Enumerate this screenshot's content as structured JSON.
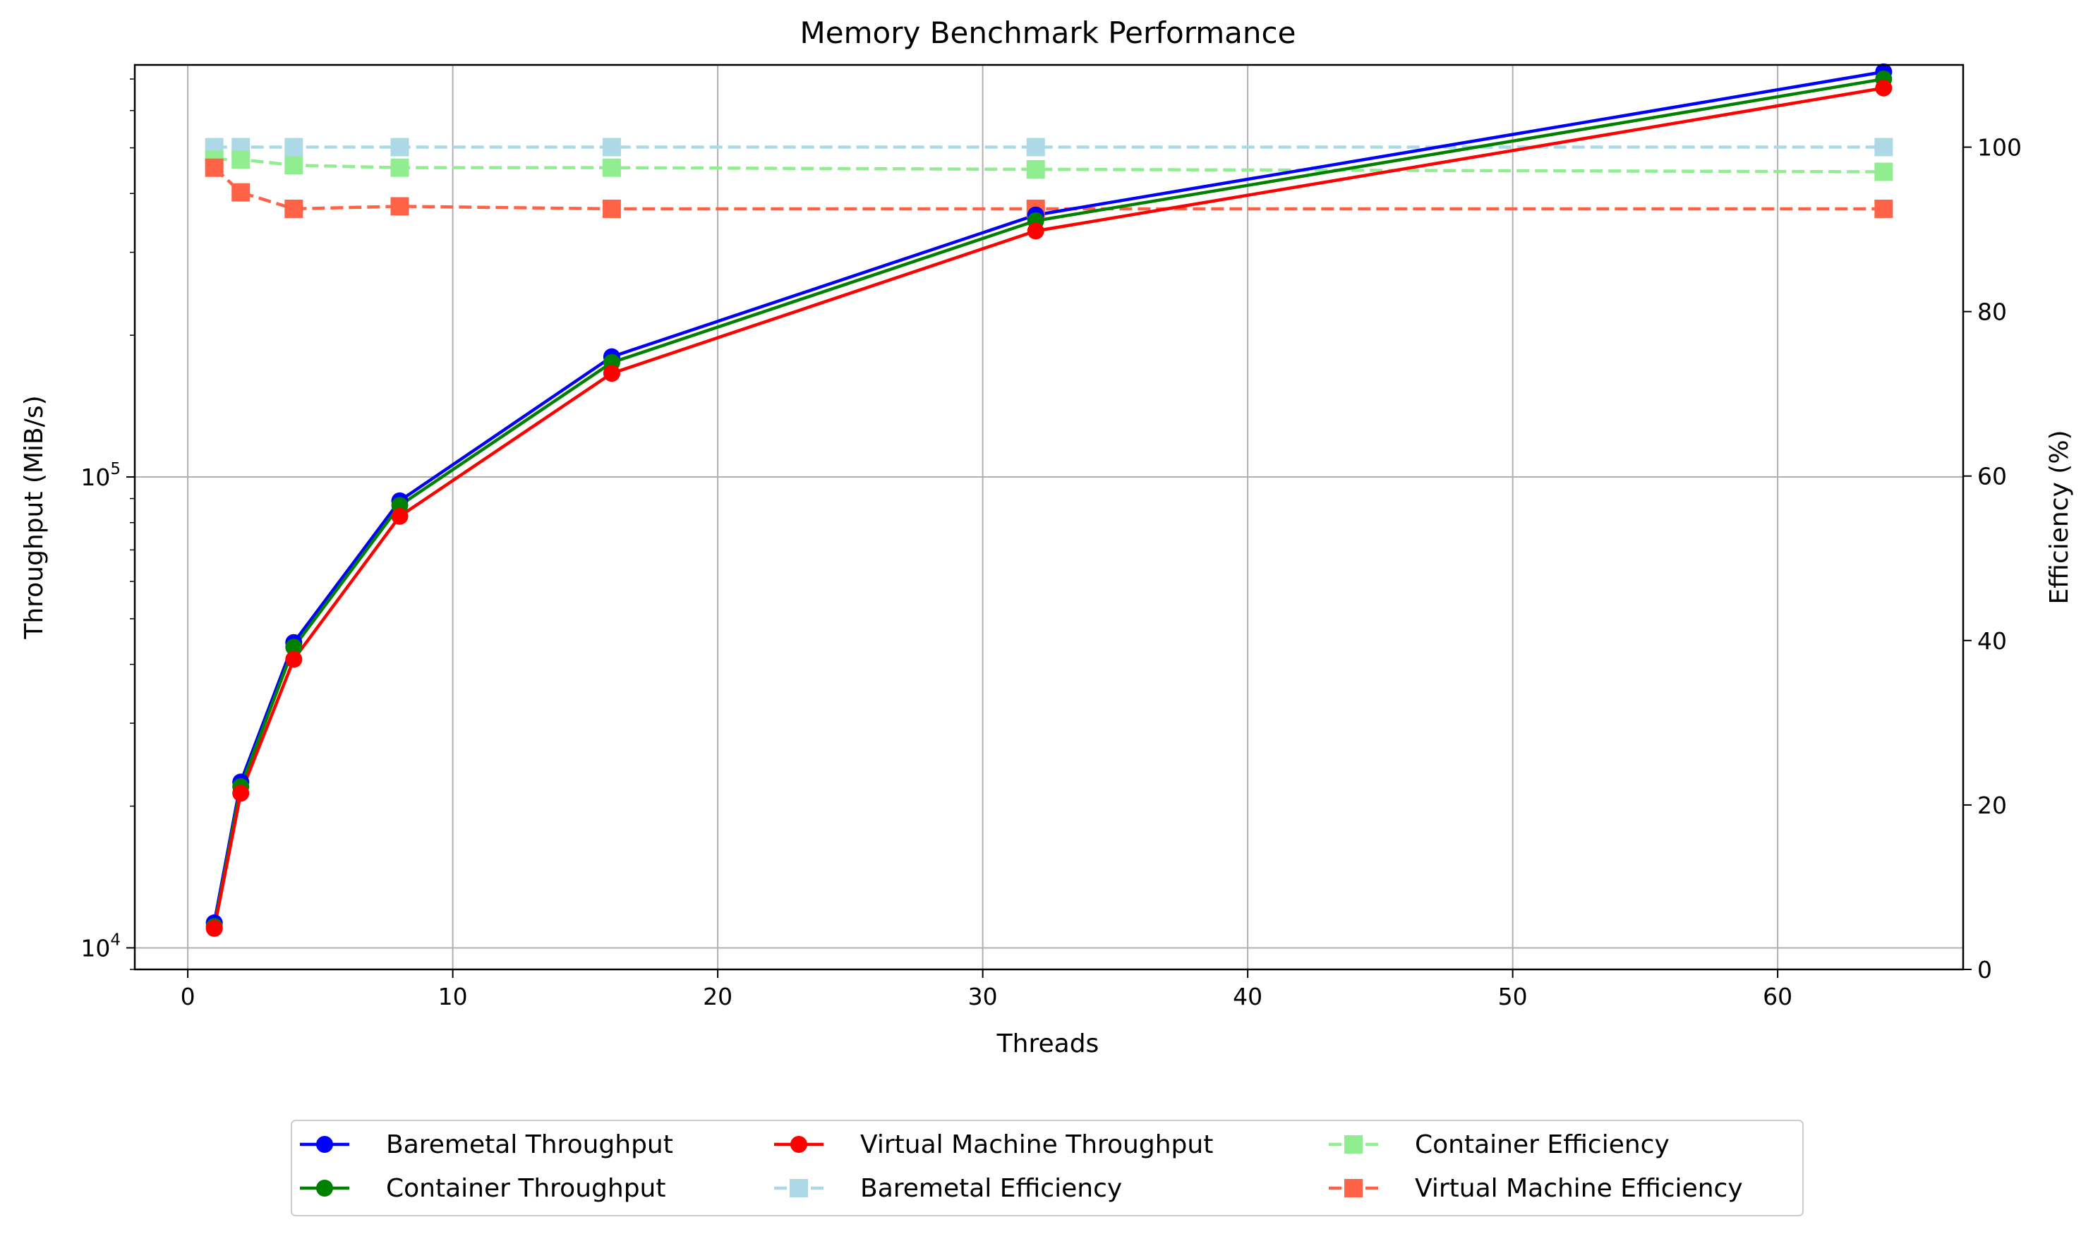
{
  "chart_data": {
    "type": "line",
    "title": "Memory Benchmark Performance",
    "xlabel": "Threads",
    "ylabel_left": "Throughput (MiB/s)",
    "ylabel_right": "Efficiency (%)",
    "xlim": [
      -2,
      67
    ],
    "ylim_left": [
      9000,
      750000
    ],
    "yscale_left": "log",
    "ylim_right": [
      0,
      110
    ],
    "grid": true,
    "legend_position": "bottom-center",
    "x": [
      1,
      2,
      4,
      8,
      16,
      32,
      64
    ],
    "x_ticks": [
      0,
      10,
      20,
      30,
      40,
      50,
      60
    ],
    "x_tick_labels": [
      "0",
      "10",
      "20",
      "30",
      "40",
      "50",
      "60"
    ],
    "y_left_ticks": [
      {
        "value": 10000,
        "base": "10",
        "exp": "4"
      },
      {
        "value": 100000,
        "base": "10",
        "exp": "5"
      }
    ],
    "y_right_ticks": [
      0,
      20,
      40,
      60,
      80,
      100
    ],
    "y_right_tick_labels": [
      "0",
      "20",
      "40",
      "60",
      "80",
      "100"
    ],
    "series": [
      {
        "name": "Baremetal Throughput",
        "axis": "left",
        "color": "#0000ff",
        "marker": "circle",
        "dash": "solid",
        "values": [
          11300,
          22500,
          44500,
          89000,
          180000,
          360000,
          725000
        ]
      },
      {
        "name": "Container Throughput",
        "axis": "left",
        "color": "#008000",
        "marker": "circle",
        "dash": "solid",
        "values": [
          11100,
          22000,
          43500,
          87000,
          175000,
          350000,
          700000
        ]
      },
      {
        "name": "Virtual Machine Throughput",
        "axis": "left",
        "color": "#ff0000",
        "marker": "circle",
        "dash": "solid",
        "values": [
          11000,
          21300,
          41000,
          82500,
          166000,
          333000,
          670000
        ]
      },
      {
        "name": "Baremetal Efficiency",
        "axis": "right",
        "color": "#add8e6",
        "marker": "square",
        "dash": "dashed",
        "values": [
          100,
          100,
          100,
          100,
          100,
          100,
          100
        ]
      },
      {
        "name": "Container Efficiency",
        "axis": "right",
        "color": "#90ee90",
        "marker": "square",
        "dash": "dashed",
        "values": [
          98.5,
          98.5,
          97.8,
          97.5,
          97.5,
          97.3,
          97.0
        ]
      },
      {
        "name": "Virtual Machine Efficiency",
        "axis": "right",
        "color": "#ff6347",
        "marker": "square",
        "dash": "dashed",
        "values": [
          97.5,
          94.5,
          92.5,
          92.8,
          92.5,
          92.5,
          92.5
        ]
      }
    ],
    "legend_order": [
      0,
      1,
      2,
      3,
      4,
      5
    ]
  }
}
